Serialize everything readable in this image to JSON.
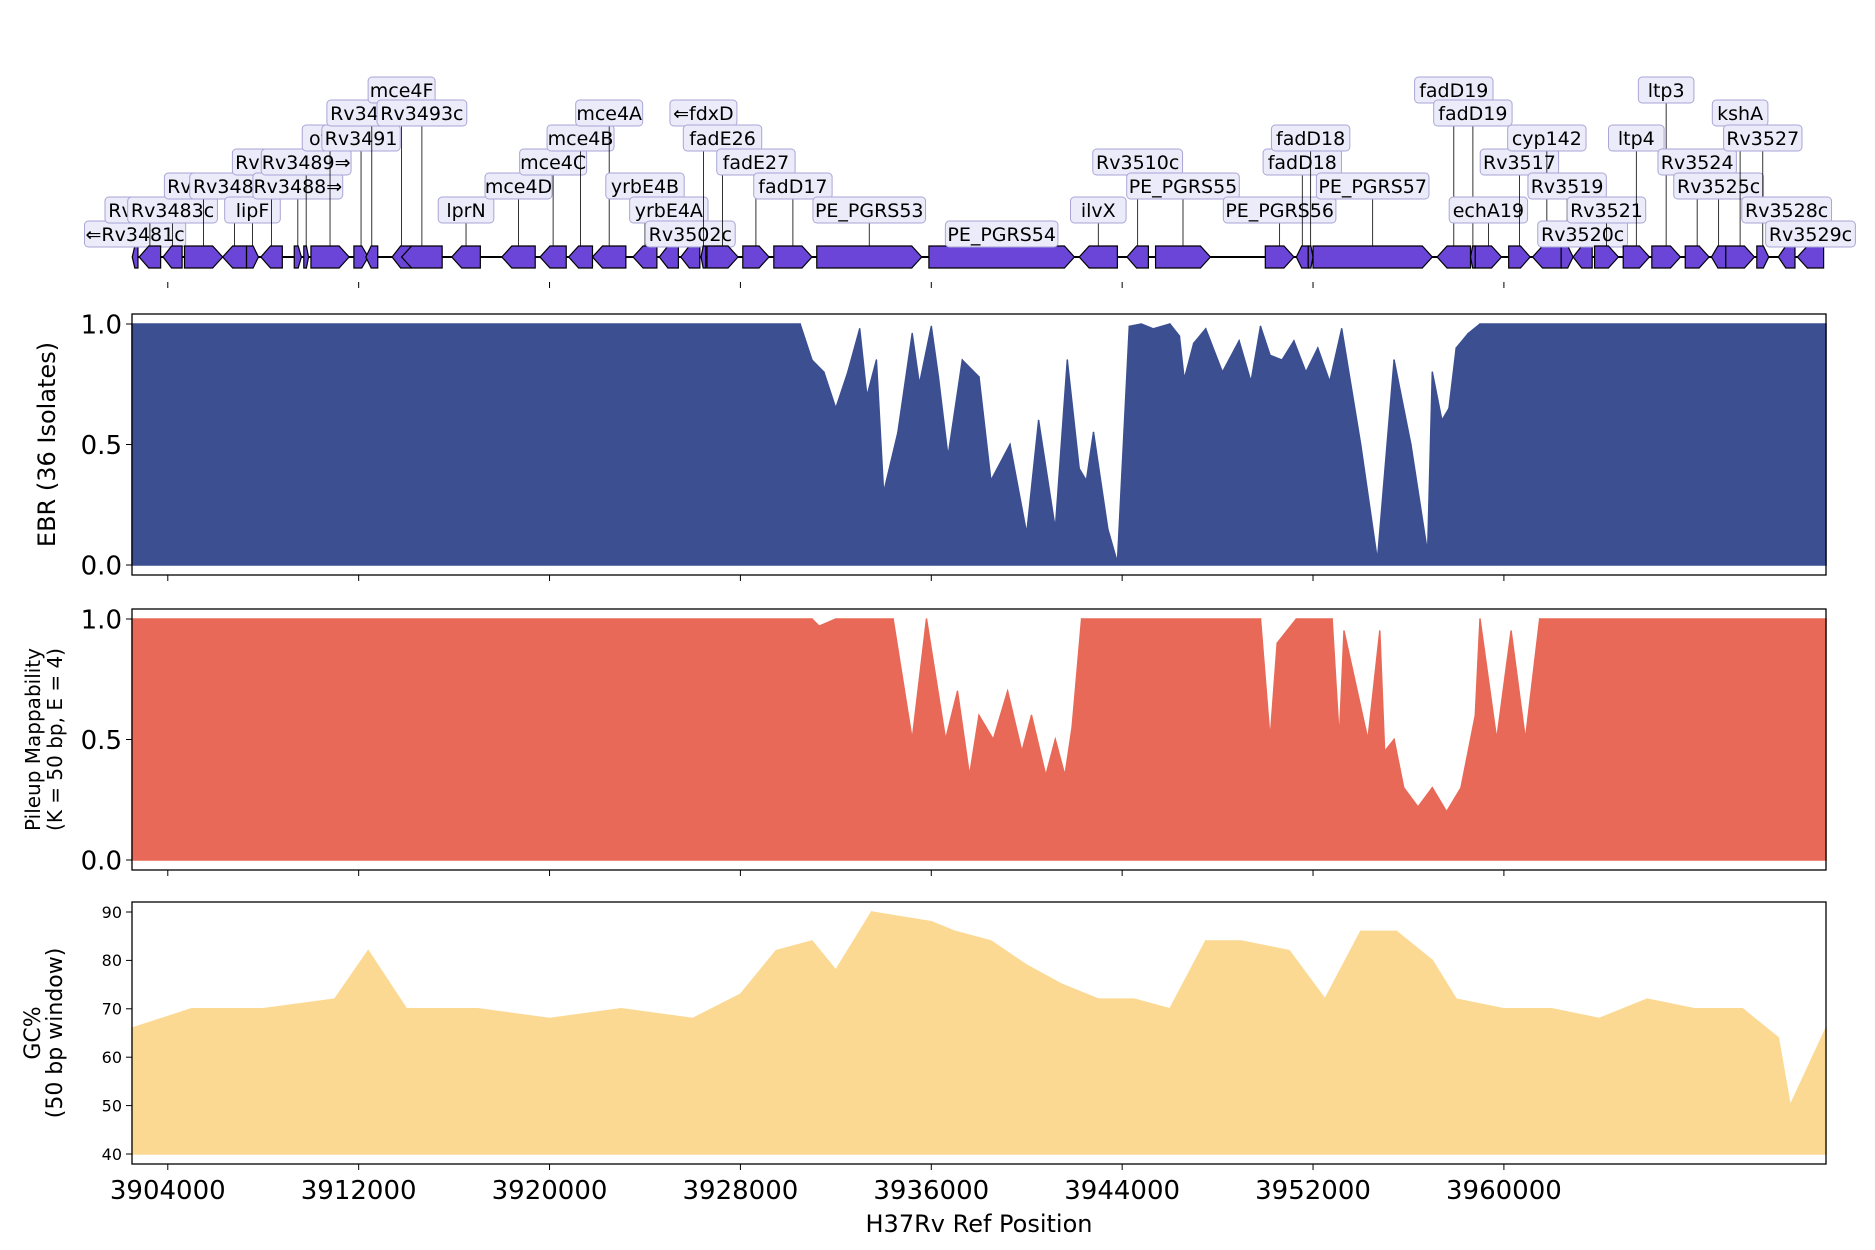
{
  "colors": {
    "gene": "#6a45d8",
    "gene_label_bg": "#ecebfa",
    "gene_label_border": "#a9a6d6",
    "ebr": "#3b4f91",
    "mappability": "#e86957",
    "gc": "#fcd993",
    "axis": "#000000"
  },
  "chart_data": [
    {
      "id": "gene_track",
      "type": "gene-annotation",
      "x_range": [
        3902500,
        3973500
      ],
      "genes": [
        {
          "name": "⇐Rv3481c",
          "start": 3902510,
          "end": 3902750,
          "strand": "-"
        },
        {
          "name": "Rv3482c",
          "start": 3902800,
          "end": 3903700,
          "strand": "-"
        },
        {
          "name": "Rv3483c",
          "start": 3903800,
          "end": 3904600,
          "strand": "-"
        },
        {
          "name": "Rv3484",
          "start": 3904700,
          "end": 3906300,
          "strand": "+"
        },
        {
          "name": "Rv3485c",
          "start": 3906300,
          "end": 3907300,
          "strand": "-"
        },
        {
          "name": "lipF",
          "start": 3907300,
          "end": 3907800,
          "strand": "+"
        },
        {
          "name": "Rv3486",
          "start": 3907900,
          "end": 3908800,
          "strand": "-"
        },
        {
          "name": "Rv3488⇒",
          "start": 3909300,
          "end": 3909600,
          "strand": "+"
        },
        {
          "name": "Rv3489⇒",
          "start": 3909700,
          "end": 3909900,
          "strand": "+"
        },
        {
          "name": "otsA",
          "start": 3910000,
          "end": 3911600,
          "strand": "+"
        },
        {
          "name": "Rv3491",
          "start": 3911800,
          "end": 3912400,
          "strand": "+"
        },
        {
          "name": "Rv3492c",
          "start": 3912300,
          "end": 3912800,
          "strand": "-"
        },
        {
          "name": "mce4F",
          "start": 3913400,
          "end": 3914200,
          "strand": "-"
        },
        {
          "name": "Rv3493c",
          "start": 3913800,
          "end": 3915500,
          "strand": "-"
        },
        {
          "name": "lprN",
          "start": 3915900,
          "end": 3917100,
          "strand": "-"
        },
        {
          "name": "mce4D",
          "start": 3918000,
          "end": 3919400,
          "strand": "-"
        },
        {
          "name": "mce4C",
          "start": 3919600,
          "end": 3920700,
          "strand": "-"
        },
        {
          "name": "mce4B",
          "start": 3920800,
          "end": 3921800,
          "strand": "-"
        },
        {
          "name": "mce4A",
          "start": 3921800,
          "end": 3923200,
          "strand": "-"
        },
        {
          "name": "yrbE4B",
          "start": 3923500,
          "end": 3924500,
          "strand": "-"
        },
        {
          "name": "yrbE4A",
          "start": 3924600,
          "end": 3925400,
          "strand": "-"
        },
        {
          "name": "Rv3502c",
          "start": 3925500,
          "end": 3926300,
          "strand": "-"
        },
        {
          "name": "⇐fdxD",
          "start": 3926350,
          "end": 3926550,
          "strand": "-"
        },
        {
          "name": "fadE26",
          "start": 3926600,
          "end": 3927900,
          "strand": "+"
        },
        {
          "name": "fadE27",
          "start": 3928100,
          "end": 3929200,
          "strand": "+"
        },
        {
          "name": "fadD17",
          "start": 3929400,
          "end": 3931000,
          "strand": "+"
        },
        {
          "name": "PE_PGRS53",
          "start": 3931200,
          "end": 3935600,
          "strand": "+"
        },
        {
          "name": "PE_PGRS54",
          "start": 3935900,
          "end": 3942000,
          "strand": "+"
        },
        {
          "name": "ilvX",
          "start": 3942200,
          "end": 3943800,
          "strand": "-"
        },
        {
          "name": "Rv3510c",
          "start": 3944200,
          "end": 3945100,
          "strand": "-"
        },
        {
          "name": "PE_PGRS55",
          "start": 3945400,
          "end": 3947700,
          "strand": "+"
        },
        {
          "name": "PE_PGRS56",
          "start": 3950000,
          "end": 3951200,
          "strand": "+"
        },
        {
          "name": "fadD18",
          "start": 3951300,
          "end": 3951800,
          "strand": "-"
        },
        {
          "name": "fadD18",
          "start": 3951800,
          "end": 3952000,
          "strand": "+"
        },
        {
          "name": "PE_PGRS57",
          "start": 3952000,
          "end": 3957000,
          "strand": "+"
        },
        {
          "name": "fadD19",
          "start": 3957200,
          "end": 3958600,
          "strand": "-"
        },
        {
          "name": "fadD19",
          "start": 3958600,
          "end": 3958800,
          "strand": "-"
        },
        {
          "name": "echA19",
          "start": 3958800,
          "end": 3959900,
          "strand": "+"
        },
        {
          "name": "Rv3517",
          "start": 3960200,
          "end": 3961100,
          "strand": "+"
        },
        {
          "name": "cyp142",
          "start": 3961200,
          "end": 3962400,
          "strand": "-"
        },
        {
          "name": "Rv3519",
          "start": 3962400,
          "end": 3962900,
          "strand": "+"
        },
        {
          "name": "Rv3520c",
          "start": 3962900,
          "end": 3963700,
          "strand": "-"
        },
        {
          "name": "Rv3521",
          "start": 3963800,
          "end": 3964800,
          "strand": "+"
        },
        {
          "name": "ltp4",
          "start": 3965000,
          "end": 3966100,
          "strand": "+"
        },
        {
          "name": "ltp3",
          "start": 3966200,
          "end": 3967400,
          "strand": "+"
        },
        {
          "name": "Rv3524",
          "start": 3967600,
          "end": 3968600,
          "strand": "+"
        },
        {
          "name": "Rv3525c",
          "start": 3968700,
          "end": 3969300,
          "strand": "-"
        },
        {
          "name": "kshA",
          "start": 3969300,
          "end": 3970500,
          "strand": "+"
        },
        {
          "name": "Rv3527",
          "start": 3970600,
          "end": 3971100,
          "strand": "+"
        },
        {
          "name": "Rv3528c",
          "start": 3971500,
          "end": 3972200,
          "strand": "-"
        },
        {
          "name": "Rv3529c",
          "start": 3972300,
          "end": 3973400,
          "strand": "-"
        }
      ]
    },
    {
      "id": "ebr",
      "type": "area",
      "ylabel": "EBR (36 Isolates)",
      "ylim": [
        0.0,
        1.0
      ],
      "yticks": [
        "0.0",
        "0.5",
        "1.0"
      ],
      "x": [
        3902500,
        3930500,
        3931000,
        3931500,
        3932000,
        3932500,
        3933000,
        3933300,
        3933700,
        3934000,
        3934600,
        3935200,
        3935500,
        3936000,
        3936300,
        3936700,
        3937300,
        3938000,
        3938500,
        3939300,
        3940000,
        3940500,
        3941200,
        3941700,
        3942200,
        3942500,
        3942800,
        3943400,
        3943800,
        3944300,
        3944800,
        3945300,
        3946000,
        3946400,
        3946600,
        3947000,
        3947500,
        3948200,
        3948900,
        3949400,
        3949800,
        3950200,
        3950700,
        3951200,
        3951700,
        3952200,
        3952700,
        3953200,
        3954000,
        3954700,
        3955400,
        3956100,
        3956800,
        3957000,
        3957400,
        3957700,
        3958000,
        3958500,
        3959000,
        3973500
      ],
      "values": [
        1.0,
        1.0,
        0.85,
        0.8,
        0.65,
        0.8,
        0.98,
        0.7,
        0.85,
        0.3,
        0.55,
        0.96,
        0.75,
        0.99,
        0.78,
        0.45,
        0.85,
        0.78,
        0.35,
        0.5,
        0.13,
        0.6,
        0.15,
        0.85,
        0.4,
        0.35,
        0.55,
        0.15,
        0.01,
        0.99,
        1.0,
        0.98,
        1.0,
        0.95,
        0.77,
        0.92,
        0.98,
        0.8,
        0.93,
        0.76,
        0.99,
        0.87,
        0.85,
        0.93,
        0.8,
        0.9,
        0.76,
        0.98,
        0.5,
        0.02,
        0.85,
        0.5,
        0.05,
        0.8,
        0.6,
        0.65,
        0.9,
        0.96,
        1.0,
        1.0
      ]
    },
    {
      "id": "mappability",
      "type": "area",
      "ylabel": "Pileup Mappability",
      "ylabel2": "(K = 50 bp, E = 4)",
      "ylim": [
        0.0,
        1.0
      ],
      "yticks": [
        "0.0",
        "0.5",
        "1.0"
      ],
      "x": [
        3902500,
        3931000,
        3931300,
        3932000,
        3934400,
        3935200,
        3935800,
        3936600,
        3937100,
        3937600,
        3938000,
        3938600,
        3939200,
        3939800,
        3940200,
        3940800,
        3941200,
        3941600,
        3941900,
        3942300,
        3949800,
        3950200,
        3950500,
        3951300,
        3952800,
        3953100,
        3953300,
        3954300,
        3954800,
        3955000,
        3955400,
        3955800,
        3956400,
        3957000,
        3957600,
        3958200,
        3958800,
        3959000,
        3959700,
        3960300,
        3960900,
        3961500,
        3973500
      ],
      "values": [
        1.0,
        1.0,
        0.97,
        1.0,
        1.0,
        0.5,
        1.0,
        0.5,
        0.7,
        0.35,
        0.6,
        0.5,
        0.7,
        0.45,
        0.6,
        0.35,
        0.5,
        0.35,
        0.55,
        1.0,
        1.0,
        0.5,
        0.9,
        1.0,
        1.0,
        0.5,
        0.95,
        0.5,
        0.95,
        0.45,
        0.5,
        0.3,
        0.22,
        0.3,
        0.2,
        0.3,
        0.6,
        1.0,
        0.5,
        0.95,
        0.5,
        1.0,
        1.0
      ]
    },
    {
      "id": "gc",
      "type": "area",
      "ylabel": "GC%",
      "ylabel2": "(50 bp window)",
      "ylim": [
        40,
        90
      ],
      "yticks": [
        "40",
        "50",
        "60",
        "70",
        "80",
        "90"
      ],
      "x": [
        3902500,
        3905000,
        3908000,
        3911000,
        3912400,
        3914000,
        3917000,
        3920000,
        3923000,
        3926000,
        3928000,
        3929500,
        3931000,
        3932000,
        3933500,
        3936000,
        3937000,
        3938500,
        3940000,
        3941500,
        3943000,
        3944500,
        3946000,
        3947500,
        3949000,
        3951000,
        3952500,
        3954000,
        3955500,
        3957000,
        3958000,
        3960000,
        3962000,
        3964000,
        3966000,
        3968000,
        3970000,
        3971500,
        3972000,
        3973500
      ],
      "values": [
        66,
        70,
        70,
        72,
        82,
        70,
        70,
        68,
        70,
        68,
        73,
        82,
        84,
        78,
        90,
        88,
        86,
        84,
        79,
        75,
        72,
        72,
        70,
        84,
        84,
        82,
        72,
        86,
        86,
        80,
        72,
        70,
        70,
        68,
        72,
        70,
        70,
        64,
        50,
        66
      ]
    }
  ],
  "shared_x_axis": {
    "xlabel": "H37Rv Ref Position",
    "ticks": [
      "3904000",
      "3912000",
      "3920000",
      "3928000",
      "3936000",
      "3944000",
      "3952000",
      "3960000"
    ]
  }
}
